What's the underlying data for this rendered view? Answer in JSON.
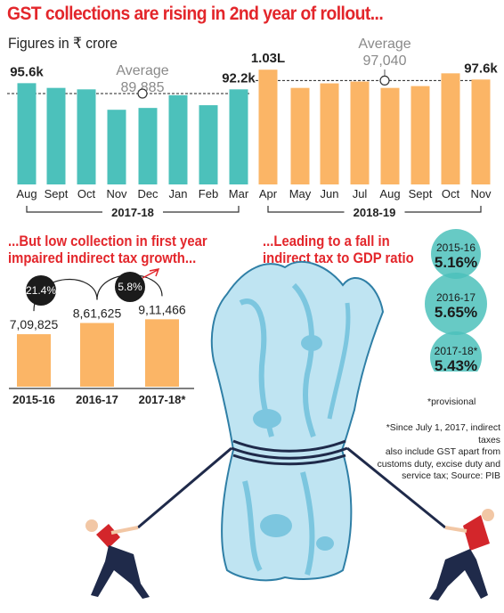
{
  "title": "GST collections are rising in 2nd year of rollout...",
  "subtitle": "Figures in ₹ crore",
  "colors": {
    "teal": "#4cc1bb",
    "orange": "#fbb566",
    "red": "#e3262b",
    "bubble": "#4cc1bb",
    "dark": "#1b1b1b"
  },
  "chart_data": [
    {
      "type": "bar",
      "title": "GST collections are rising in 2nd year of rollout...",
      "ylabel": "Figures in ₹ crore",
      "ylim": [
        40000,
        108000
      ],
      "groups": [
        {
          "label": "2017-18",
          "average_label": "Average",
          "average_value_label": "89,885",
          "average": 89885,
          "color": "teal"
        },
        {
          "label": "2018-19",
          "average_label": "Average",
          "average_value_label": "97,040",
          "average": 97040,
          "color": "orange"
        }
      ],
      "categories": [
        "Aug",
        "Sept",
        "Oct",
        "Nov",
        "Dec",
        "Jan",
        "Feb",
        "Mar",
        "Apr",
        "May",
        "Jun",
        "Jul",
        "Aug",
        "Sept",
        "Oct",
        "Nov"
      ],
      "values": [
        95600,
        93000,
        92200,
        81000,
        82000,
        89000,
        83500,
        92200,
        103000,
        93000,
        95500,
        96500,
        93000,
        94000,
        101000,
        97600
      ],
      "group_index": [
        0,
        0,
        0,
        0,
        0,
        0,
        0,
        0,
        1,
        1,
        1,
        1,
        1,
        1,
        1,
        1
      ],
      "data_labels": [
        "95.6k",
        "",
        "",
        "",
        "",
        "",
        "",
        "92.2k",
        "1.03L",
        "",
        "",
        "",
        "",
        "",
        "",
        "97.6k"
      ]
    },
    {
      "type": "bar",
      "title": "...But low collection in first year impaired indirect tax growth...",
      "categories": [
        "2015-16",
        "2016-17",
        "2017-18*"
      ],
      "values": [
        709825,
        861625,
        911466
      ],
      "data_labels": [
        "7,09,825",
        "8,61,625",
        "9,11,466"
      ],
      "growth": [
        "21.4%",
        "5.8%"
      ],
      "ylim": [
        0,
        1500000
      ]
    },
    {
      "type": "table",
      "title": "...Leading to a fall in indirect tax to GDP ratio",
      "years": [
        "2015-16",
        "2016-17",
        "2017-18*"
      ],
      "ratios": [
        "5.16%",
        "5.65%",
        "5.43%"
      ]
    }
  ],
  "growth_title_line1": "...But low collection in first year",
  "growth_title_line2": "impaired indirect tax growth...",
  "ratio_title_line1": "...Leading to a fall in",
  "ratio_title_line2": "indirect tax to GDP ratio",
  "provisional_note": "*provisional",
  "footnote": [
    "*Since July 1, 2017, indirect taxes",
    "also include GST apart from",
    "customs duty, excise duty and",
    "service tax; Source: PIB"
  ]
}
